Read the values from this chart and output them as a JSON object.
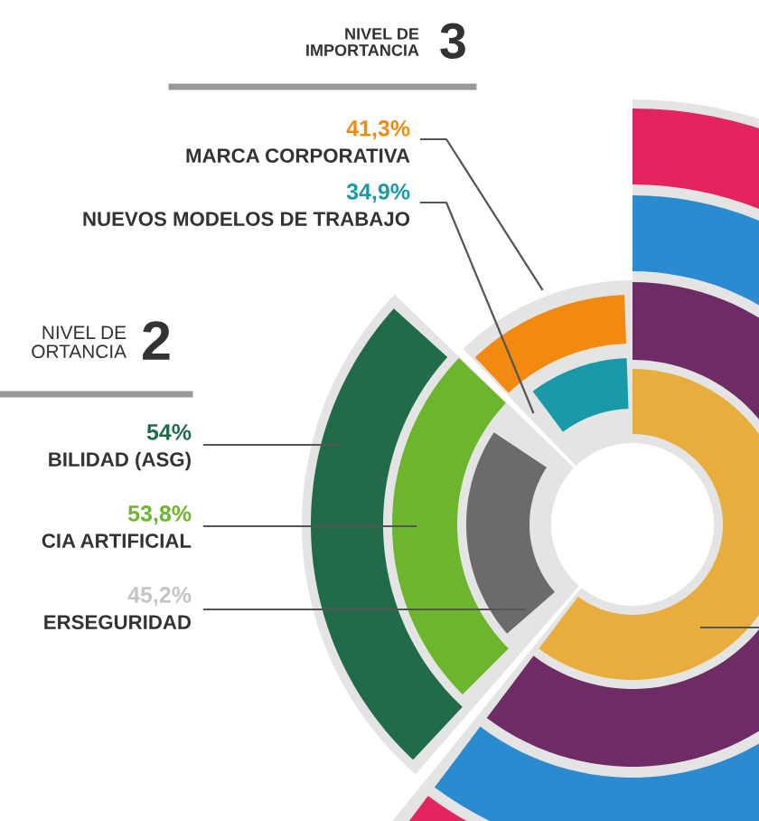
{
  "chart_data": {
    "type": "other",
    "categories": [
      "MARCA CORPORATIVA",
      "NUEVOS MODELOS DE TRABAJO",
      "BILIDAD (ASG)",
      "CIA ARTIFICIAL",
      "ERSEGURIDAD"
    ],
    "values": [
      41.3,
      34.9,
      54,
      53.8,
      45.2
    ],
    "value_labels": [
      "41,3%",
      "34,9%",
      "54%",
      "53,8%",
      "45,2%"
    ],
    "colors": [
      "#f28a12",
      "#1a9aa8",
      "#226b4a",
      "#6cb52d",
      "#6b6b6b"
    ],
    "annotations": [
      "NIVEL DE\nIMPORTANCIA",
      "3",
      "NIVEL DE\nORTANCIA",
      "2"
    ]
  }
}
